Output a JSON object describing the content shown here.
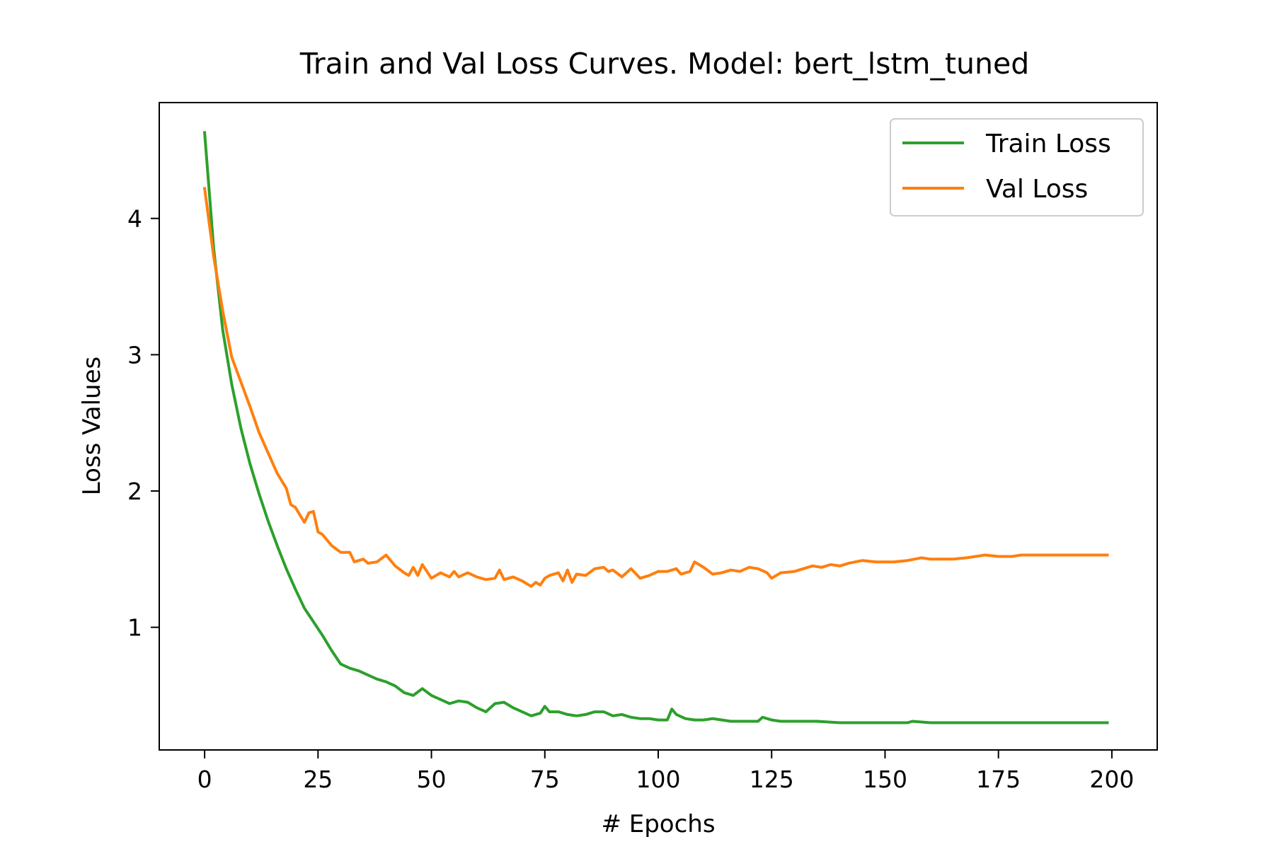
{
  "chart_data": {
    "type": "line",
    "title": "Train and Val Loss Curves. Model: bert_lstm_tuned",
    "xlabel": "# Epochs",
    "ylabel": "Loss Values",
    "xlim": [
      -10,
      210
    ],
    "ylim": [
      0.1,
      4.85
    ],
    "grid": false,
    "legend_position": "top-right",
    "x_ticks": [
      0,
      25,
      50,
      75,
      100,
      125,
      150,
      175,
      200
    ],
    "y_ticks": [
      1,
      2,
      3,
      4
    ],
    "series": [
      {
        "name": "Train Loss",
        "color": "#2ca02c",
        "points": [
          [
            0,
            4.63
          ],
          [
            2,
            3.78
          ],
          [
            4,
            3.18
          ],
          [
            6,
            2.78
          ],
          [
            8,
            2.46
          ],
          [
            10,
            2.2
          ],
          [
            12,
            1.98
          ],
          [
            14,
            1.78
          ],
          [
            16,
            1.6
          ],
          [
            18,
            1.43
          ],
          [
            20,
            1.28
          ],
          [
            22,
            1.14
          ],
          [
            24,
            1.04
          ],
          [
            26,
            0.94
          ],
          [
            28,
            0.83
          ],
          [
            30,
            0.73
          ],
          [
            32,
            0.7
          ],
          [
            34,
            0.68
          ],
          [
            36,
            0.65
          ],
          [
            38,
            0.62
          ],
          [
            40,
            0.6
          ],
          [
            42,
            0.57
          ],
          [
            44,
            0.52
          ],
          [
            46,
            0.5
          ],
          [
            48,
            0.55
          ],
          [
            50,
            0.5
          ],
          [
            52,
            0.47
          ],
          [
            54,
            0.44
          ],
          [
            56,
            0.46
          ],
          [
            58,
            0.45
          ],
          [
            60,
            0.41
          ],
          [
            62,
            0.38
          ],
          [
            64,
            0.44
          ],
          [
            66,
            0.45
          ],
          [
            68,
            0.41
          ],
          [
            70,
            0.38
          ],
          [
            72,
            0.35
          ],
          [
            74,
            0.37
          ],
          [
            75,
            0.42
          ],
          [
            76,
            0.38
          ],
          [
            78,
            0.38
          ],
          [
            80,
            0.36
          ],
          [
            82,
            0.35
          ],
          [
            84,
            0.36
          ],
          [
            86,
            0.38
          ],
          [
            88,
            0.38
          ],
          [
            90,
            0.35
          ],
          [
            92,
            0.36
          ],
          [
            94,
            0.34
          ],
          [
            96,
            0.33
          ],
          [
            98,
            0.33
          ],
          [
            100,
            0.32
          ],
          [
            102,
            0.32
          ],
          [
            103,
            0.4
          ],
          [
            104,
            0.36
          ],
          [
            106,
            0.33
          ],
          [
            108,
            0.32
          ],
          [
            110,
            0.32
          ],
          [
            112,
            0.33
          ],
          [
            114,
            0.32
          ],
          [
            116,
            0.31
          ],
          [
            118,
            0.31
          ],
          [
            120,
            0.31
          ],
          [
            122,
            0.31
          ],
          [
            123,
            0.34
          ],
          [
            125,
            0.32
          ],
          [
            127,
            0.31
          ],
          [
            130,
            0.31
          ],
          [
            135,
            0.31
          ],
          [
            140,
            0.3
          ],
          [
            145,
            0.3
          ],
          [
            150,
            0.3
          ],
          [
            155,
            0.3
          ],
          [
            156,
            0.31
          ],
          [
            160,
            0.3
          ],
          [
            165,
            0.3
          ],
          [
            170,
            0.3
          ],
          [
            175,
            0.3
          ],
          [
            180,
            0.3
          ],
          [
            185,
            0.3
          ],
          [
            190,
            0.3
          ],
          [
            195,
            0.3
          ],
          [
            199,
            0.3
          ]
        ]
      },
      {
        "name": "Val Loss",
        "color": "#ff7f0e",
        "points": [
          [
            0,
            4.22
          ],
          [
            2,
            3.72
          ],
          [
            4,
            3.32
          ],
          [
            6,
            2.98
          ],
          [
            8,
            2.8
          ],
          [
            10,
            2.62
          ],
          [
            12,
            2.43
          ],
          [
            14,
            2.28
          ],
          [
            16,
            2.13
          ],
          [
            18,
            2.02
          ],
          [
            19,
            1.9
          ],
          [
            20,
            1.88
          ],
          [
            22,
            1.77
          ],
          [
            23,
            1.84
          ],
          [
            24,
            1.85
          ],
          [
            25,
            1.7
          ],
          [
            26,
            1.68
          ],
          [
            28,
            1.6
          ],
          [
            30,
            1.55
          ],
          [
            32,
            1.55
          ],
          [
            33,
            1.48
          ],
          [
            35,
            1.5
          ],
          [
            36,
            1.47
          ],
          [
            38,
            1.48
          ],
          [
            40,
            1.53
          ],
          [
            42,
            1.45
          ],
          [
            44,
            1.4
          ],
          [
            45,
            1.38
          ],
          [
            46,
            1.44
          ],
          [
            47,
            1.38
          ],
          [
            48,
            1.46
          ],
          [
            50,
            1.36
          ],
          [
            52,
            1.4
          ],
          [
            54,
            1.37
          ],
          [
            55,
            1.41
          ],
          [
            56,
            1.37
          ],
          [
            58,
            1.4
          ],
          [
            60,
            1.37
          ],
          [
            62,
            1.35
          ],
          [
            64,
            1.36
          ],
          [
            65,
            1.42
          ],
          [
            66,
            1.35
          ],
          [
            68,
            1.37
          ],
          [
            70,
            1.34
          ],
          [
            72,
            1.3
          ],
          [
            73,
            1.33
          ],
          [
            74,
            1.31
          ],
          [
            75,
            1.36
          ],
          [
            76,
            1.38
          ],
          [
            78,
            1.4
          ],
          [
            79,
            1.34
          ],
          [
            80,
            1.42
          ],
          [
            81,
            1.33
          ],
          [
            82,
            1.39
          ],
          [
            84,
            1.38
          ],
          [
            86,
            1.43
          ],
          [
            88,
            1.44
          ],
          [
            89,
            1.41
          ],
          [
            90,
            1.42
          ],
          [
            92,
            1.37
          ],
          [
            94,
            1.43
          ],
          [
            96,
            1.36
          ],
          [
            98,
            1.38
          ],
          [
            100,
            1.41
          ],
          [
            102,
            1.41
          ],
          [
            104,
            1.43
          ],
          [
            105,
            1.39
          ],
          [
            107,
            1.41
          ],
          [
            108,
            1.48
          ],
          [
            110,
            1.44
          ],
          [
            112,
            1.39
          ],
          [
            114,
            1.4
          ],
          [
            116,
            1.42
          ],
          [
            118,
            1.41
          ],
          [
            120,
            1.44
          ],
          [
            122,
            1.43
          ],
          [
            124,
            1.4
          ],
          [
            125,
            1.36
          ],
          [
            127,
            1.4
          ],
          [
            130,
            1.41
          ],
          [
            132,
            1.43
          ],
          [
            134,
            1.45
          ],
          [
            136,
            1.44
          ],
          [
            138,
            1.46
          ],
          [
            140,
            1.45
          ],
          [
            142,
            1.47
          ],
          [
            145,
            1.49
          ],
          [
            148,
            1.48
          ],
          [
            150,
            1.48
          ],
          [
            152,
            1.48
          ],
          [
            155,
            1.49
          ],
          [
            158,
            1.51
          ],
          [
            160,
            1.5
          ],
          [
            162,
            1.5
          ],
          [
            165,
            1.5
          ],
          [
            168,
            1.51
          ],
          [
            170,
            1.52
          ],
          [
            172,
            1.53
          ],
          [
            175,
            1.52
          ],
          [
            178,
            1.52
          ],
          [
            180,
            1.53
          ],
          [
            185,
            1.53
          ],
          [
            190,
            1.53
          ],
          [
            195,
            1.53
          ],
          [
            199,
            1.53
          ]
        ]
      }
    ]
  }
}
